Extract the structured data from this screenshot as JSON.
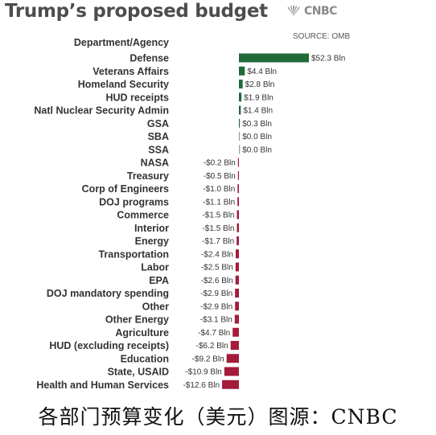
{
  "title": "Trump’s proposed budget",
  "brand": "CNBC",
  "brand_icon": "peacock-icon",
  "source": "SOURCE: OMB",
  "column_header": "Department/Agency",
  "caption": "各部门预算变化（美元）图源：CNBC",
  "colors": {
    "positive": "#1f6b38",
    "negative": "#a51c3b",
    "title": "#4d4d4d"
  },
  "chart_data": {
    "type": "bar",
    "orientation": "horizontal",
    "title": "Trump’s proposed budget",
    "column_header": "Department/Agency",
    "unit": "Bln",
    "categories": [
      "Defense",
      "Veterans Affairs",
      "Homeland Security",
      "HUD receipts",
      "Natl Nuclear Security Admin",
      "GSA",
      "SBA",
      "SSA",
      "NASA",
      "Treasury",
      "Corp of Engineers",
      "DOJ programs",
      "Commerce",
      "Interior",
      "Energy",
      "Transportation",
      "Labor",
      "EPA",
      "DOJ mandatory spending",
      "Other",
      "Other Energy",
      "Agriculture",
      "HUD (excluding receipts)",
      "Education",
      "State, USAID",
      "Health and Human Services"
    ],
    "values": [
      52.3,
      4.4,
      2.8,
      1.9,
      1.4,
      0.3,
      0.0,
      0.0,
      -0.2,
      -0.5,
      -1.0,
      -1.1,
      -1.5,
      -1.5,
      -1.7,
      -2.4,
      -2.5,
      -2.6,
      -2.9,
      -2.9,
      -3.1,
      -4.7,
      -6.2,
      -9.2,
      -10.9,
      -12.6
    ],
    "labels": [
      "$52.3 Bln",
      "$4.4 Bln",
      "$2.8 Bln",
      "$1.9 Bln",
      "$1.4 Bln",
      "$0.3 Bln",
      "$0.0 Bln",
      "$0.0 Bln",
      "-$0.2 Bln",
      "-$0.5 Bln",
      "-$1.0 Bln",
      "-$1.1 Bln",
      "-$1.5 Bln",
      "-$1.5 Bln",
      "-$1.7 Bln",
      "-$2.4 Bln",
      "-$2.5 Bln",
      "-$2.6 Bln",
      "-$2.9 Bln",
      "-$2.9 Bln",
      "-$3.1 Bln",
      "-$4.7 Bln",
      "-$6.2 Bln",
      "-$9.2 Bln",
      "-$10.9 Bln",
      "-$12.6 Bln"
    ],
    "xlim": [
      -12.6,
      52.3
    ],
    "grid": false,
    "legend": "none"
  }
}
